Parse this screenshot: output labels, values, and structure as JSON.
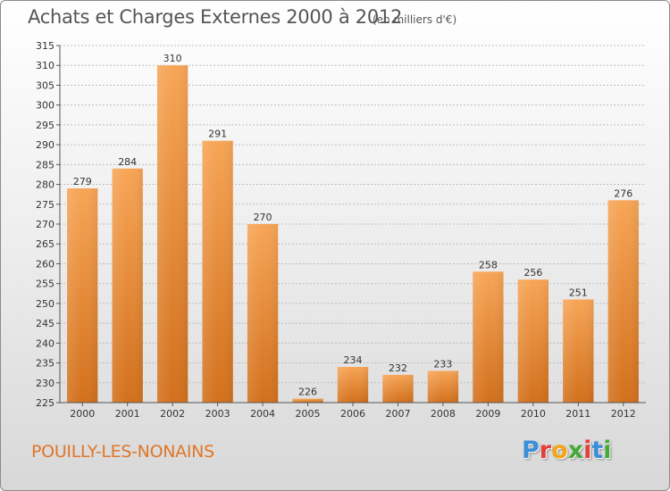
{
  "header": {
    "title": "Achats et Charges Externes 2000 à 2012",
    "subtitle": "(en milliers d'€)"
  },
  "footer": {
    "commune": "POUILLY-LES-NONAINS",
    "logo_letters": [
      "P",
      "r",
      "o",
      "x",
      "i",
      "t",
      "i"
    ],
    "logo_colors": [
      "#3a8fd6",
      "#e2403a",
      "#f2a51a",
      "#47a83a",
      "#e2403a",
      "#3a8fd6",
      "#47a83a"
    ]
  },
  "colors": {
    "bar_top": "#f7a556",
    "bar_bottom": "#d2701c",
    "grid": "#bdbdbd",
    "axis": "#555555"
  },
  "chart_data": {
    "type": "bar",
    "title": "Achats et Charges Externes 2000 à 2012",
    "subtitle": "(en milliers d'€)",
    "categories": [
      "2000",
      "2001",
      "2002",
      "2003",
      "2004",
      "2005",
      "2006",
      "2007",
      "2008",
      "2009",
      "2010",
      "2011",
      "2012"
    ],
    "values": [
      279,
      284,
      310,
      291,
      270,
      226,
      234,
      232,
      233,
      258,
      256,
      251,
      276
    ],
    "ylim": [
      225,
      315
    ],
    "yticks": [
      225,
      230,
      235,
      240,
      245,
      250,
      255,
      260,
      265,
      270,
      275,
      280,
      285,
      290,
      295,
      300,
      305,
      310,
      315
    ],
    "grid": true,
    "xlabel": "",
    "ylabel": ""
  }
}
